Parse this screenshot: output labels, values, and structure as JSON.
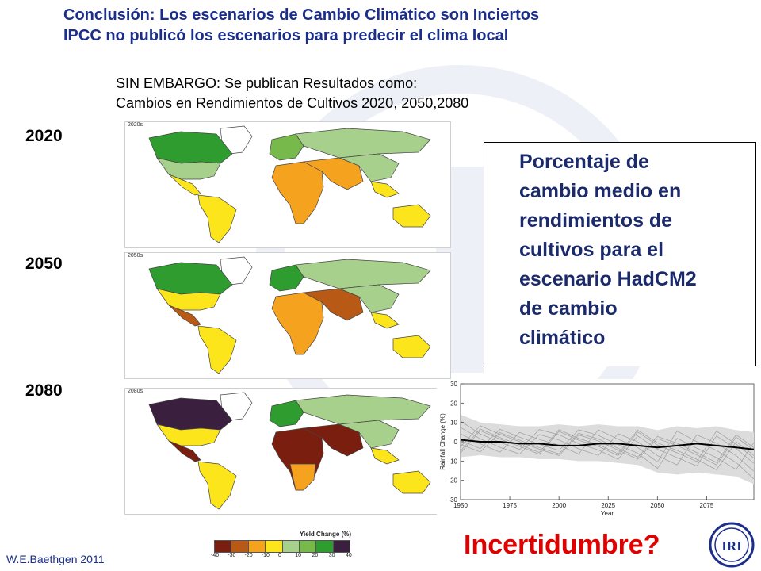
{
  "title": {
    "line1": "Conclusión: Los escenarios de Cambio Climático son Inciertos",
    "line2": "IPCC no publicó los escenarios para predecir el clima local"
  },
  "subtitle": {
    "line1": "SIN EMBARGO:   Se publican Resultados como:",
    "line2": "Cambios en Rendimientos de Cultivos 2020, 2050,2080"
  },
  "years": [
    "2020",
    "2050",
    "2080"
  ],
  "maps": [
    {
      "tag": "2020s"
    },
    {
      "tag": "2050s"
    },
    {
      "tag": "2080s"
    }
  ],
  "description": {
    "line1": "Porcentaje de",
    "line2": "cambio medio en",
    "line3": "rendimientos de",
    "line4": "cultivos para el",
    "line5": "escenario HadCM2",
    "line6": "de cambio",
    "line7": "climático"
  },
  "legend": {
    "title": "Yield Change (%)",
    "ticks": [
      "-40",
      "-30",
      "-20",
      "-10",
      "0",
      "10",
      "20",
      "30",
      "40"
    ],
    "colors": [
      "#7a1f10",
      "#b85a16",
      "#f5a21e",
      "#fde51c",
      "#a8d08d",
      "#78b94c",
      "#2e9c2e",
      "#3a1f3f"
    ]
  },
  "chart_data": {
    "type": "line",
    "xlabel": "Year",
    "ylabel": "Rainfall Change (%)",
    "xlim": [
      1950,
      2099
    ],
    "ylim": [
      -30,
      30
    ],
    "xticks": [
      "1950",
      "1975",
      "2000",
      "2025",
      "2050",
      "2075"
    ],
    "yticks": [
      "30",
      "20",
      "10",
      "0",
      "-10",
      "-20",
      "-30"
    ],
    "mean_series": {
      "x": [
        1950,
        1960,
        1970,
        1980,
        1990,
        2000,
        2010,
        2020,
        2030,
        2040,
        2050,
        2060,
        2070,
        2080,
        2090,
        2099
      ],
      "y": [
        1,
        0,
        0,
        -1,
        -1,
        -2,
        -2,
        -1,
        -1,
        -2,
        -3,
        -2,
        -1,
        -2,
        -3,
        -4
      ]
    },
    "model_spread": {
      "x": [
        1950,
        1960,
        1970,
        1980,
        1990,
        2000,
        2010,
        2020,
        2030,
        2040,
        2050,
        2060,
        2070,
        2080,
        2090,
        2099
      ],
      "upper": [
        14,
        10,
        9,
        8,
        8,
        9,
        8,
        9,
        8,
        8,
        6,
        8,
        7,
        8,
        6,
        5
      ],
      "lower": [
        -8,
        -7,
        -8,
        -8,
        -9,
        -9,
        -10,
        -10,
        -11,
        -12,
        -16,
        -17,
        -16,
        -17,
        -18,
        -22
      ]
    }
  },
  "footer": {
    "incertidumbre": "Incertidumbre?",
    "author": "W.E.Baethgen 2011",
    "logo_text": "IRI"
  }
}
